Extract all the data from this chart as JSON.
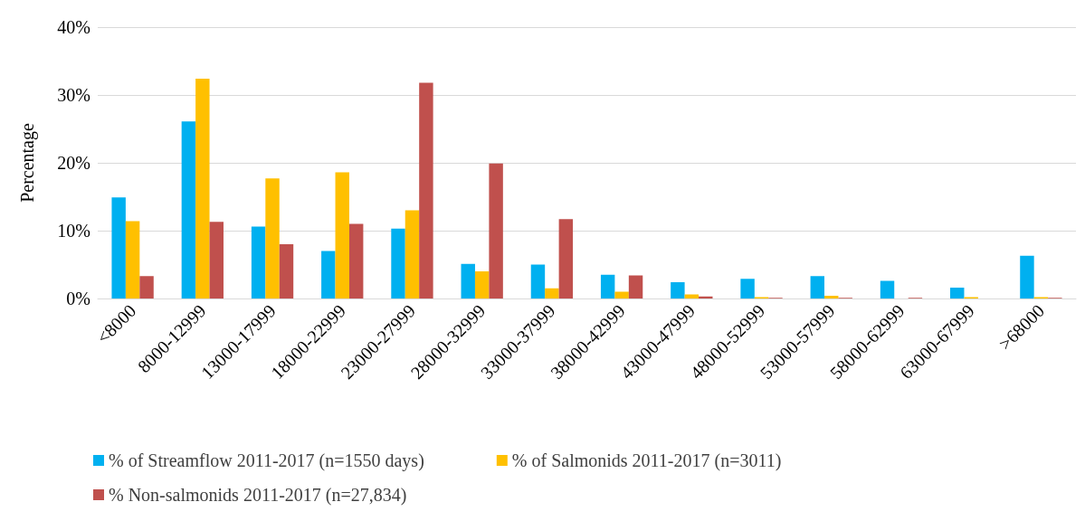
{
  "chart_data": {
    "type": "bar",
    "ylabel": "Percentage",
    "categories": [
      "<8000",
      "8000-12999",
      "13000-17999",
      "18000-22999",
      "23000-27999",
      "28000-32999",
      "33000-37999",
      "38000-42999",
      "43000-47999",
      "48000-52999",
      "53000-57999",
      "58000-62999",
      "63000-67999",
      ">68000"
    ],
    "series": [
      {
        "name": "% of Streamflow 2011-2017 (n=1550 days)",
        "color": "#00b0f0",
        "values": [
          14.9,
          26.1,
          10.6,
          7.0,
          10.3,
          5.1,
          5.0,
          3.5,
          2.4,
          2.9,
          3.3,
          2.6,
          1.6,
          6.3
        ]
      },
      {
        "name": "% of Salmonids 2011-2017 (n=3011)",
        "color": "#ffc000",
        "values": [
          11.4,
          32.4,
          17.7,
          18.6,
          13.0,
          4.0,
          1.5,
          1.0,
          0.6,
          0.2,
          0.4,
          0,
          0.2,
          0.2
        ]
      },
      {
        "name": "% Non-salmonids 2011-2017 (n=27,834)",
        "color": "#c0504d",
        "values": [
          3.3,
          11.3,
          8.0,
          11.0,
          31.8,
          19.9,
          11.7,
          3.4,
          0.3,
          0.1,
          0.1,
          0.1,
          0,
          0.1
        ]
      }
    ],
    "ylim": [
      0,
      40
    ],
    "yticks": [
      {
        "value": 0,
        "label": "0%"
      },
      {
        "value": 10,
        "label": "10%"
      },
      {
        "value": 20,
        "label": "20%"
      },
      {
        "value": 30,
        "label": "30%"
      },
      {
        "value": 40,
        "label": "40%"
      }
    ],
    "grid": "y",
    "legend": "bottom"
  }
}
